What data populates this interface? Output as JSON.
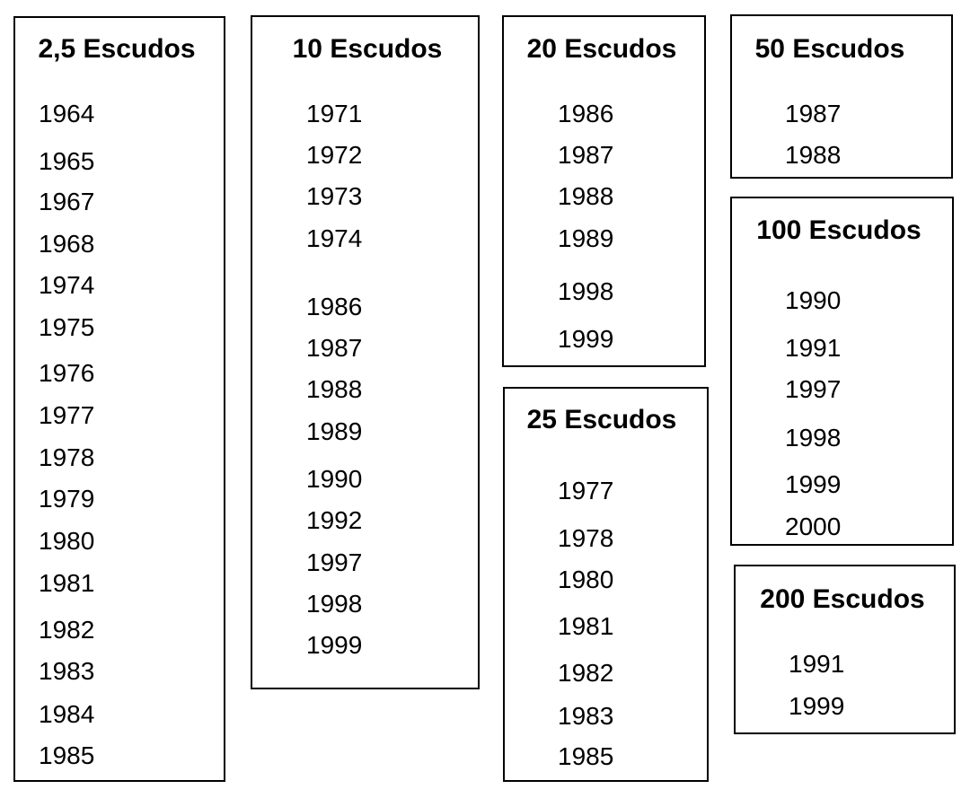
{
  "boxes": [
    {
      "title": "2,5 Escudos",
      "years": [
        "1964",
        "1965",
        "1967",
        "1968",
        "1974",
        "1975",
        "1976",
        "1977",
        "1978",
        "1979",
        "1980",
        "1981",
        "1982",
        "1983",
        "1984",
        "1985"
      ]
    },
    {
      "title": "10 Escudos",
      "years": [
        "1971",
        "1972",
        "1973",
        "1974",
        "1986",
        "1987",
        "1988",
        "1989",
        "1990",
        "1992",
        "1997",
        "1998",
        "1999"
      ]
    },
    {
      "title": "20 Escudos",
      "years": [
        "1986",
        "1987",
        "1988",
        "1989",
        "1998",
        "1999"
      ]
    },
    {
      "title": "25 Escudos",
      "years": [
        "1977",
        "1978",
        "1980",
        "1981",
        "1982",
        "1983",
        "1985"
      ]
    },
    {
      "title": "50 Escudos",
      "years": [
        "1987",
        "1988"
      ]
    },
    {
      "title": "100 Escudos",
      "years": [
        "1990",
        "1991",
        "1997",
        "1998",
        "1999",
        "2000"
      ]
    },
    {
      "title": "200 Escudos",
      "years": [
        "1991",
        "1999"
      ]
    }
  ]
}
